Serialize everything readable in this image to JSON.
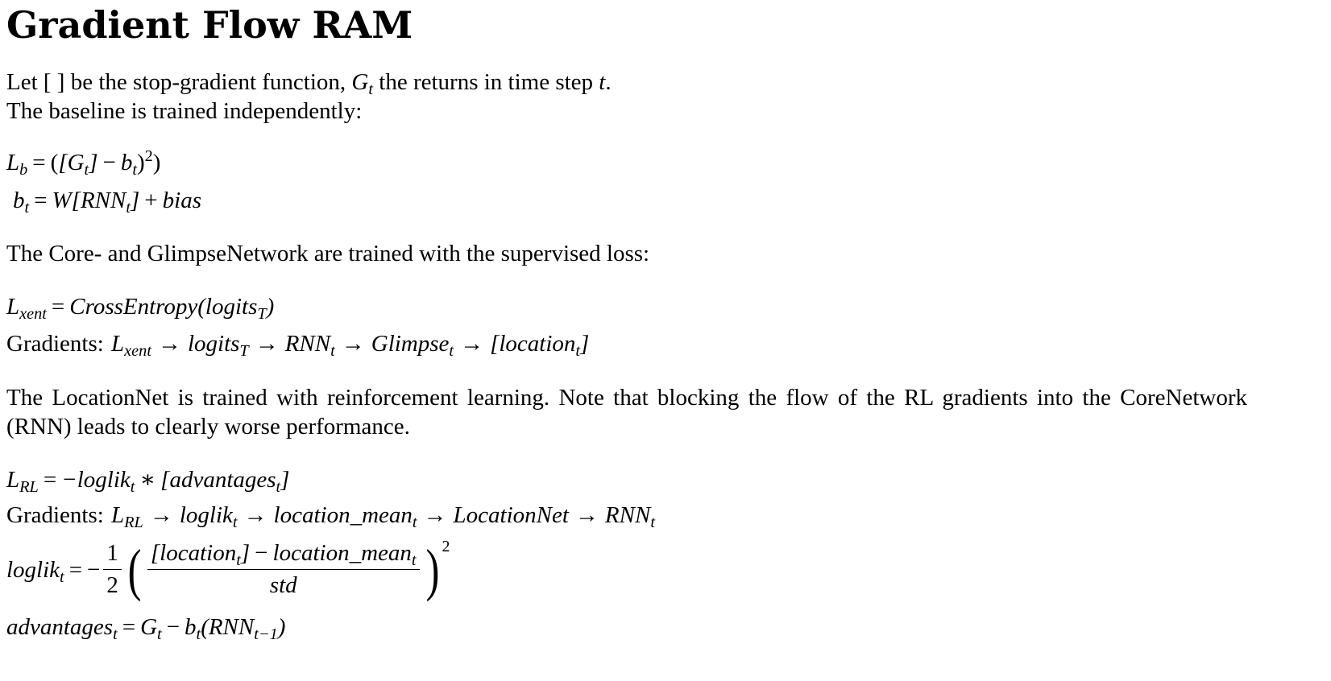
{
  "title": "Gradient Flow RAM",
  "intro": {
    "line1_a": "Let [ ] be the stop-gradient function, ",
    "line1_b": " the returns in time step ",
    "line1_c": ".",
    "line2": "The baseline is trained independently:"
  },
  "baseline_heading": "The Core- and GlimpseNetwork are trained with the supervised loss:",
  "gradients_label": "Gradients:",
  "rl_paragraph": "The LocationNet is trained with reinforcement learning.  Note that blocking the flow of the RL gradients into the CoreNetwork (RNN) leads to clearly worse performance."
}
